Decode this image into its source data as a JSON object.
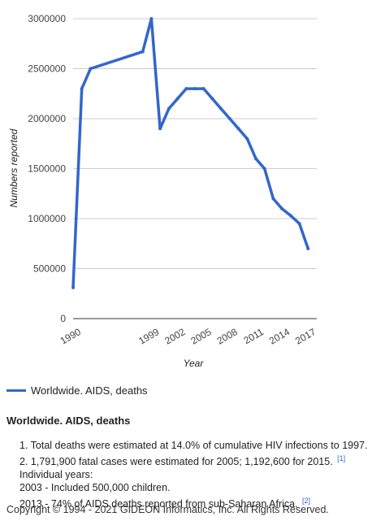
{
  "chart_data": {
    "type": "line",
    "x": [
      1990,
      1991,
      1992,
      1998,
      1999,
      2000,
      2001,
      2002,
      2003,
      2004,
      2005,
      2006,
      2007,
      2008,
      2009,
      2010,
      2011,
      2012,
      2013,
      2014,
      2015,
      2016,
      2017
    ],
    "series": [
      {
        "name": "Worldwide. AIDS, deaths",
        "color": "#3366cc",
        "values": [
          310000,
          2300000,
          2500000,
          2670000,
          3000000,
          1900000,
          2100000,
          2200000,
          2300000,
          2300000,
          2300000,
          2200000,
          2100000,
          2000000,
          1900000,
          1800000,
          1600000,
          1500000,
          1200000,
          1100000,
          1030000,
          950000,
          700000
        ]
      }
    ],
    "xtick_labels": [
      "1990",
      "1999",
      "2002",
      "2005",
      "2008",
      "2011",
      "2014",
      "2017"
    ],
    "ytick_labels": [
      "0",
      "500000",
      "1000000",
      "1500000",
      "2000000",
      "2500000",
      "3000000"
    ],
    "yticks": [
      0,
      500000,
      1000000,
      1500000,
      2000000,
      2500000,
      3000000
    ],
    "ylim": [
      0,
      3000000
    ],
    "xlabel": "Year",
    "ylabel": "Numbers reported",
    "grid": true,
    "legend": "bottom-left"
  },
  "legend_label": "Worldwide. AIDS, deaths",
  "section_title": "Worldwide. AIDS, deaths",
  "notes": {
    "n1": "1. Total deaths were estimated at 14.0% of cumulative HIV infections to 1997.",
    "n2": "2. 1,791,900 fatal cases were estimated for 2005; 1,192,600 for 2015.",
    "n2_ref": "[1]",
    "n3": "Individual years:",
    "n4": "2003 - Included 500,000 children.",
    "n5": "2013 - 74% of AIDS deaths reported from sub-Saharan Africa.",
    "n5_ref": "[2]"
  },
  "copyright": "Copyright © 1994 - 2021 GIDEON Informatics, Inc. All Rights Reserved."
}
